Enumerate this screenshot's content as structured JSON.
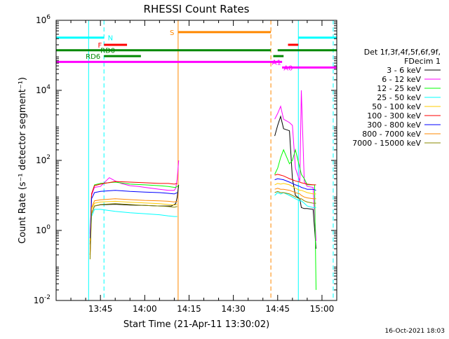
{
  "chart_data": {
    "type": "line",
    "title": "RHESSI Count Rates",
    "xlabel": "Start Time (21-Apr-11 13:30:02)",
    "ylabel": "Count Rate (s⁻¹ detector segment⁻¹)",
    "y_scale": "log",
    "x_unit": "minutes after 13:30",
    "xlim": [
      0,
      95
    ],
    "ylim": [
      0.01,
      1000000
    ],
    "x_ticks": [
      {
        "value": 15,
        "label": "13:45"
      },
      {
        "value": 30,
        "label": "14:00"
      },
      {
        "value": 45,
        "label": "14:15"
      },
      {
        "value": 60,
        "label": "14:30"
      },
      {
        "value": 75,
        "label": "14:45"
      },
      {
        "value": 90,
        "label": "15:00"
      }
    ],
    "y_ticks": [
      {
        "value": 0.01,
        "base": "10",
        "exp": "-2"
      },
      {
        "value": 1,
        "base": "10",
        "exp": "0"
      },
      {
        "value": 100,
        "base": "10",
        "exp": "2"
      },
      {
        "value": 10000,
        "base": "10",
        "exp": "4"
      },
      {
        "value": 1000000,
        "base": "10",
        "exp": "6"
      }
    ],
    "legend": {
      "position": "right",
      "header": [
        "Det 1f,3f,4f,5f,6f,9f,",
        "FDecim 1"
      ]
    },
    "series": [
      {
        "name": "3 - 6 keV",
        "color": "#000000",
        "x": [
          11.5,
          12,
          13,
          15,
          20,
          25,
          30,
          35,
          38,
          39,
          40.5,
          41,
          41.5,
          74,
          75,
          76,
          77,
          79,
          80,
          81,
          82.5,
          83,
          84,
          85,
          87,
          88
        ],
        "y": [
          0.4,
          3,
          5,
          5.4,
          5.6,
          5.3,
          5.2,
          5,
          5,
          5,
          5.8,
          9,
          20,
          500,
          1000,
          1800,
          800,
          700,
          30,
          10,
          8,
          4.5,
          4.2,
          4.2,
          4,
          0.3
        ]
      },
      {
        "name": "6 - 12 keV",
        "color": "#ff00ff",
        "x": [
          11.5,
          12,
          13,
          15,
          18,
          20,
          22,
          25,
          28,
          30,
          35,
          38,
          40,
          40.5,
          41,
          41.5,
          74,
          75,
          76,
          77,
          79,
          80,
          81,
          82.5,
          83,
          84,
          85,
          87,
          88
        ],
        "y": [
          0.8,
          10,
          17,
          18,
          32,
          26,
          22,
          19,
          18,
          17,
          15,
          14,
          14,
          16,
          30,
          100,
          1500,
          2200,
          3500,
          1500,
          1200,
          1000,
          60,
          25,
          10000,
          25,
          18,
          17,
          0.5
        ]
      },
      {
        "name": "12 - 25 keV",
        "color": "#00ff00",
        "x": [
          11.5,
          12,
          13,
          15,
          20,
          25,
          30,
          35,
          38,
          40,
          40.5,
          41,
          41.5,
          74,
          75,
          76,
          77,
          79,
          80,
          81,
          82.5,
          83,
          84,
          85,
          87,
          87.5,
          88
        ],
        "y": [
          0.5,
          11,
          20,
          22,
          24,
          21,
          20,
          19,
          18,
          17,
          17,
          18,
          19,
          40,
          60,
          120,
          200,
          80,
          100,
          200,
          60,
          40,
          30,
          20,
          20,
          20,
          0.02
        ]
      },
      {
        "name": "25 - 50 keV",
        "color": "#00ffff",
        "x": [
          11.5,
          12,
          13,
          15,
          20,
          25,
          30,
          35,
          38,
          40,
          41,
          74,
          75,
          76,
          77,
          79,
          80,
          81,
          82.5,
          83,
          84,
          85,
          87,
          88
        ],
        "y": [
          0.3,
          2.5,
          4,
          4,
          3.5,
          3.2,
          3,
          2.8,
          2.6,
          2.5,
          2.5,
          10,
          12,
          11,
          12,
          10,
          9,
          8,
          7,
          7,
          6,
          5,
          4.5,
          4.5
        ]
      },
      {
        "name": "50 - 100 keV",
        "color": "#ffcc00",
        "x": [
          11.5,
          12,
          13,
          15,
          20,
          25,
          30,
          35,
          38,
          40,
          41,
          74,
          75,
          76,
          77,
          79,
          80,
          81,
          82.5,
          83,
          84,
          85,
          87,
          88
        ],
        "y": [
          0.5,
          4,
          6,
          6.5,
          6.8,
          6.4,
          6.1,
          5.8,
          5.5,
          5.3,
          5.5,
          20,
          22,
          21,
          22,
          20,
          18,
          16,
          14,
          14,
          13,
          12,
          11,
          11
        ]
      },
      {
        "name": "100 - 300 keV",
        "color": "#ff0000",
        "x": [
          11.5,
          12,
          13,
          15,
          20,
          25,
          30,
          35,
          38,
          40,
          41,
          74,
          75,
          76,
          77,
          79,
          80,
          81,
          82.5,
          83,
          84,
          85,
          87,
          88
        ],
        "y": [
          0.2,
          11,
          19,
          21,
          25,
          24,
          23,
          22,
          22,
          21,
          22,
          38,
          40,
          38,
          36,
          30,
          28,
          26,
          24,
          23,
          22,
          21,
          20,
          20
        ]
      },
      {
        "name": "300 - 800 keV",
        "color": "#0000ff",
        "x": [
          11.5,
          12,
          13,
          15,
          20,
          25,
          30,
          35,
          38,
          40,
          41,
          74,
          75,
          76,
          77,
          79,
          80,
          81,
          82.5,
          83,
          84,
          85,
          87,
          88
        ],
        "y": [
          0.6,
          8,
          12,
          13,
          14,
          13,
          12.5,
          12,
          11.5,
          11,
          12,
          28,
          30,
          29,
          28,
          24,
          22,
          20,
          18,
          17,
          16,
          15,
          15,
          14
        ]
      },
      {
        "name": "800 - 7000 keV",
        "color": "#ff8800",
        "x": [
          11.5,
          12,
          13,
          15,
          20,
          25,
          30,
          35,
          38,
          40,
          41,
          74,
          75,
          76,
          77,
          79,
          80,
          81,
          82.5,
          83,
          84,
          85,
          87,
          88
        ],
        "y": [
          0.2,
          4.5,
          7,
          7.5,
          8,
          7.6,
          7.2,
          7,
          6.8,
          6.5,
          6.8,
          15,
          16,
          15,
          15,
          14,
          13,
          12,
          11,
          10,
          9,
          8.5,
          8,
          8
        ]
      },
      {
        "name": "7000 - 15000 keV",
        "color": "#888800",
        "x": [
          11.5,
          12,
          13,
          15,
          20,
          25,
          30,
          35,
          38,
          40,
          41,
          74,
          75,
          76,
          77,
          79,
          80,
          81,
          82.5,
          83,
          84,
          85,
          87,
          88
        ],
        "y": [
          0.15,
          3,
          5,
          5.5,
          5.8,
          5.5,
          5.2,
          5,
          4.8,
          4.6,
          4.8,
          12,
          13,
          12,
          12,
          11,
          10,
          9,
          8,
          8,
          7,
          6.5,
          6,
          6
        ]
      }
    ],
    "vertical_lines": [
      {
        "x": 11,
        "color": "#00ffff",
        "style": "solid"
      },
      {
        "x": 16.2,
        "color": "#00ffff",
        "style": "dashed"
      },
      {
        "x": 41.3,
        "color": "#ff8800",
        "style": "solid"
      },
      {
        "x": 72.7,
        "color": "#ff8800",
        "style": "dashed"
      },
      {
        "x": 82,
        "color": "#00ffff",
        "style": "solid"
      },
      {
        "x": 93.8,
        "color": "#00ffff",
        "style": "dashed"
      }
    ],
    "state_bars": [
      {
        "label": "N",
        "color": "#00ffff",
        "y": 320000,
        "segments": [
          [
            0,
            16.2
          ],
          [
            82,
            95
          ]
        ],
        "label_at": 17.5,
        "label_side": "right"
      },
      {
        "label": "F",
        "color": "#ff0000",
        "y": 200000,
        "segments": [
          [
            16.2,
            24
          ],
          [
            78.5,
            82
          ]
        ],
        "label_at": 15.5,
        "label_side": "left"
      },
      {
        "label": "S",
        "color": "#ff8800",
        "y": 460000,
        "segments": [
          [
            41.3,
            72.7
          ]
        ],
        "label_at": 40,
        "label_side": "left"
      },
      {
        "label": "RD0",
        "color": "#008800",
        "y": 140000,
        "segments": [
          [
            0,
            72.7
          ],
          [
            75,
            95
          ]
        ],
        "label_at": 15,
        "label_side": "right"
      },
      {
        "label": "RD6",
        "color": "#008800",
        "y": 95000,
        "segments": [
          [
            16.2,
            28.7
          ],
          [
            73.5,
            77
          ]
        ],
        "label_at": 15,
        "label_side": "left"
      },
      {
        "label": "A1",
        "color": "#ff00ff",
        "y": 65000,
        "segments": [
          [
            0,
            76.5
          ]
        ],
        "label_at": 76.2,
        "label_side": "left"
      },
      {
        "label": "A0",
        "color": "#ff00ff",
        "y": 45000,
        "segments": [
          [
            76.5,
            95
          ]
        ],
        "label_at": 77,
        "label_side": "right"
      }
    ]
  },
  "timestamp": "16-Oct-2021 18:03"
}
